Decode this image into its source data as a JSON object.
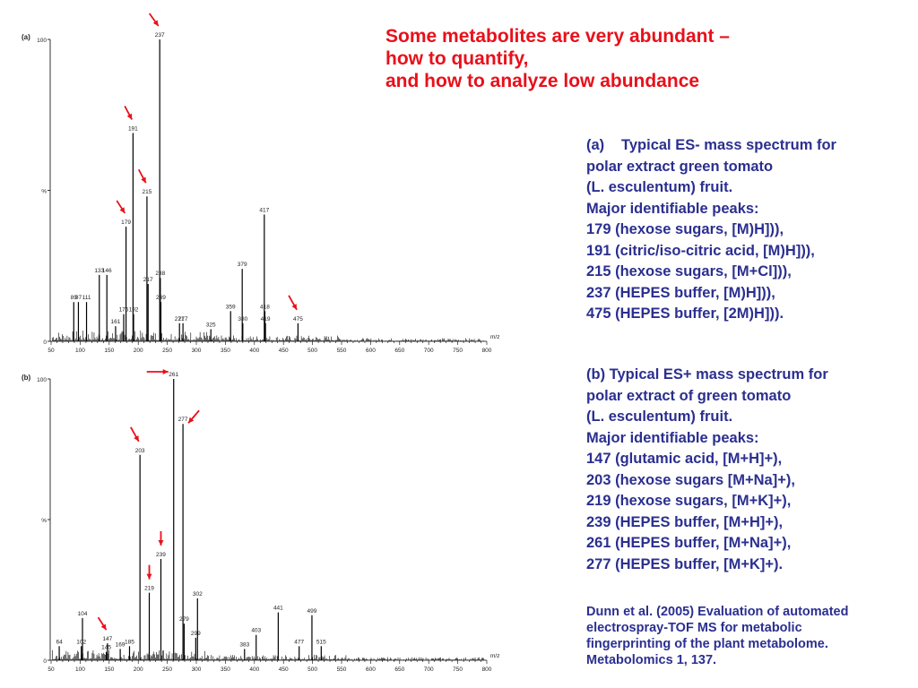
{
  "title_lines": [
    "Some metabolites are very abundant –",
    "how to quantify,",
    "and how to analyze low abundance"
  ],
  "caption_a": {
    "tag": "(a)",
    "lines": [
      "Typical ES- mass spectrum for",
      "polar extract green tomato",
      "(L. esculentum) fruit.",
      "Major identifiable peaks:",
      "179 (hexose sugars, [M)H])),",
      "191 (citric/iso-citric acid, [M)H])),",
      "215 (hexose sugars, [M+Cl])),",
      "237 (HEPES buffer, [M)H])),",
      "475 (HEPES buffer, [2M)H]))."
    ]
  },
  "caption_b": {
    "lines": [
      "(b) Typical ES+ mass spectrum for",
      "polar extract of green tomato",
      "(L. esculentum) fruit.",
      "Major identifiable peaks:",
      "147 (glutamic acid, [M+H]+),",
      "203 (hexose sugars [M+Na]+),",
      "219 (hexose sugars, [M+K]+),",
      "239 (HEPES buffer, [M+H]+),",
      "261 (HEPES buffer, [M+Na]+),",
      "277 (HEPES buffer, [M+K]+)."
    ]
  },
  "reference_lines": [
    "Dunn et al. (2005) Evaluation of automated",
    "electrospray-TOF MS for metabolic",
    "fingerprinting of the plant metabolome.",
    "Metabolomics 1, 137."
  ],
  "colors": {
    "title": "#e8101a",
    "caption": "#2b2f8f",
    "arrow": "#e8101a",
    "trace": "#000000"
  },
  "chart_data": [
    {
      "type": "bar",
      "panel_label": "(a)",
      "xlabel": "m/z",
      "ylabel_top": "100",
      "ylabel_mid": "%",
      "ylabel_bottom": "0",
      "xlim": [
        50,
        800
      ],
      "ylim": [
        0,
        100
      ],
      "xticks": [
        50,
        100,
        150,
        200,
        250,
        300,
        350,
        400,
        450,
        500,
        550,
        600,
        650,
        700,
        750,
        800
      ],
      "peaks": [
        {
          "x": 89,
          "y": 13,
          "label": "89"
        },
        {
          "x": 97,
          "y": 13,
          "label": "97"
        },
        {
          "x": 111,
          "y": 13,
          "label": "111"
        },
        {
          "x": 133,
          "y": 22,
          "label": "133"
        },
        {
          "x": 146,
          "y": 22,
          "label": "146"
        },
        {
          "x": 161,
          "y": 5,
          "label": "161"
        },
        {
          "x": 175,
          "y": 9,
          "label": "175"
        },
        {
          "x": 179,
          "y": 38,
          "label": "179"
        },
        {
          "x": 191,
          "y": 69,
          "label": "191"
        },
        {
          "x": 192,
          "y": 9,
          "label": "192"
        },
        {
          "x": 215,
          "y": 48,
          "label": "215"
        },
        {
          "x": 217,
          "y": 19,
          "label": "217"
        },
        {
          "x": 237,
          "y": 100,
          "label": "237"
        },
        {
          "x": 238,
          "y": 21,
          "label": "238"
        },
        {
          "x": 239,
          "y": 13,
          "label": "239"
        },
        {
          "x": 271,
          "y": 6,
          "label": "271"
        },
        {
          "x": 277,
          "y": 6,
          "label": "277"
        },
        {
          "x": 325,
          "y": 4,
          "label": "325"
        },
        {
          "x": 359,
          "y": 10,
          "label": "359"
        },
        {
          "x": 379,
          "y": 24,
          "label": "379"
        },
        {
          "x": 380,
          "y": 6,
          "label": "380"
        },
        {
          "x": 417,
          "y": 42,
          "label": "417"
        },
        {
          "x": 418,
          "y": 10,
          "label": "418"
        },
        {
          "x": 419,
          "y": 6,
          "label": "419"
        },
        {
          "x": 475,
          "y": 6,
          "label": "475"
        }
      ],
      "marked_peaks": [
        179,
        191,
        215,
        237,
        475
      ]
    },
    {
      "type": "bar",
      "panel_label": "(b)",
      "xlabel": "m/z",
      "ylabel_top": "100",
      "ylabel_mid": "%",
      "ylabel_bottom": "0",
      "xlim": [
        50,
        800
      ],
      "ylim": [
        0,
        100
      ],
      "xticks": [
        50,
        100,
        150,
        200,
        250,
        300,
        350,
        400,
        450,
        500,
        550,
        600,
        650,
        700,
        750,
        800
      ],
      "peaks": [
        {
          "x": 64,
          "y": 5,
          "label": "64"
        },
        {
          "x": 102,
          "y": 5,
          "label": "102"
        },
        {
          "x": 104,
          "y": 15,
          "label": "104"
        },
        {
          "x": 145,
          "y": 3,
          "label": "145"
        },
        {
          "x": 147,
          "y": 6,
          "label": "147"
        },
        {
          "x": 169,
          "y": 4,
          "label": "169"
        },
        {
          "x": 185,
          "y": 5,
          "label": "185"
        },
        {
          "x": 203,
          "y": 73,
          "label": "203"
        },
        {
          "x": 219,
          "y": 24,
          "label": "219"
        },
        {
          "x": 239,
          "y": 36,
          "label": "239"
        },
        {
          "x": 261,
          "y": 100,
          "label": "261"
        },
        {
          "x": 277,
          "y": 84,
          "label": "277"
        },
        {
          "x": 279,
          "y": 13,
          "label": "279"
        },
        {
          "x": 299,
          "y": 8,
          "label": "299"
        },
        {
          "x": 302,
          "y": 22,
          "label": "302"
        },
        {
          "x": 383,
          "y": 4,
          "label": "383"
        },
        {
          "x": 403,
          "y": 9,
          "label": "403"
        },
        {
          "x": 441,
          "y": 17,
          "label": "441"
        },
        {
          "x": 477,
          "y": 5,
          "label": "477"
        },
        {
          "x": 499,
          "y": 16,
          "label": "499"
        },
        {
          "x": 515,
          "y": 5,
          "label": "515"
        }
      ],
      "marked_peaks": [
        147,
        203,
        219,
        239,
        261,
        277
      ]
    }
  ]
}
